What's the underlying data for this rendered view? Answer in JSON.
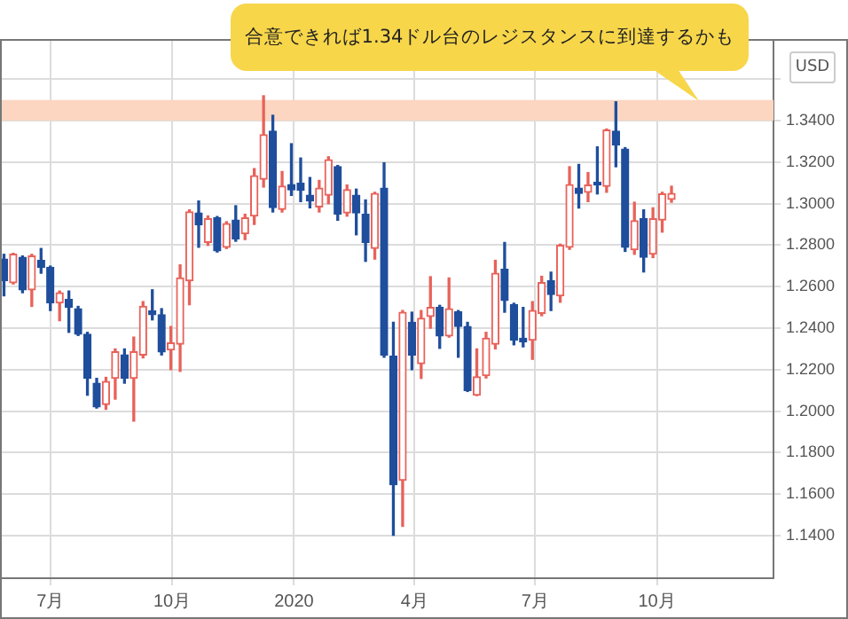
{
  "chart_data": {
    "type": "candlestick",
    "ylabel": "USD",
    "annotations": [
      "合意できれば1.34ドル台のレジスタンスに到達するかも"
    ],
    "x": [
      "2019-05-27",
      "2019-06-03",
      "2019-06-10",
      "2019-06-17",
      "2019-06-24",
      "2019-07-01",
      "2019-07-08",
      "2019-07-15",
      "2019-07-22",
      "2019-07-29",
      "2019-08-05",
      "2019-08-12",
      "2019-08-19",
      "2019-08-26",
      "2019-09-02",
      "2019-09-09",
      "2019-09-16",
      "2019-09-23",
      "2019-09-30",
      "2019-10-07",
      "2019-10-14",
      "2019-10-21",
      "2019-10-28",
      "2019-11-04",
      "2019-11-11",
      "2019-11-18",
      "2019-11-25",
      "2019-12-02",
      "2019-12-09",
      "2019-12-16",
      "2019-12-23",
      "2019-12-30",
      "2020-01-06",
      "2020-01-13",
      "2020-01-20",
      "2020-01-27",
      "2020-02-03",
      "2020-02-10",
      "2020-02-17",
      "2020-02-24",
      "2020-03-02",
      "2020-03-09",
      "2020-03-16",
      "2020-03-23",
      "2020-03-30",
      "2020-04-06",
      "2020-04-13",
      "2020-04-20",
      "2020-04-27",
      "2020-05-04",
      "2020-05-11",
      "2020-05-18",
      "2020-05-25",
      "2020-06-01",
      "2020-06-08",
      "2020-06-15",
      "2020-06-22",
      "2020-06-29",
      "2020-07-06",
      "2020-07-13",
      "2020-07-20",
      "2020-07-27",
      "2020-08-03",
      "2020-08-10",
      "2020-08-17",
      "2020-08-24",
      "2020-08-31",
      "2020-09-07",
      "2020-09-14",
      "2020-09-21",
      "2020-09-28",
      "2020-10-05",
      "2020-10-12"
    ],
    "ohlc": [
      [
        1.2733,
        1.2756,
        1.2556,
        1.2628
      ],
      [
        1.2619,
        1.2761,
        1.2613,
        1.2756
      ],
      [
        1.2742,
        1.2748,
        1.2571,
        1.2585
      ],
      [
        1.2585,
        1.2756,
        1.2505,
        1.2748
      ],
      [
        1.2727,
        1.2784,
        1.2665,
        1.2693
      ],
      [
        1.2693,
        1.2699,
        1.2485,
        1.2522
      ],
      [
        1.2522,
        1.2579,
        1.2436,
        1.2571
      ],
      [
        1.2539,
        1.2579,
        1.238,
        1.25
      ],
      [
        1.2494,
        1.2505,
        1.2365,
        1.2371
      ],
      [
        1.2371,
        1.238,
        1.2077,
        1.2158
      ],
      [
        1.2135,
        1.2158,
        1.2015,
        1.2021
      ],
      [
        1.2032,
        1.2163,
        1.2009,
        1.2143
      ],
      [
        1.2158,
        1.23,
        1.2058,
        1.2286
      ],
      [
        1.2271,
        1.23,
        1.2135,
        1.2158
      ],
      [
        1.2158,
        1.2357,
        1.1952,
        1.2286
      ],
      [
        1.2271,
        1.2528,
        1.2257,
        1.2505
      ],
      [
        1.2483,
        1.2585,
        1.244,
        1.2465
      ],
      [
        1.2465,
        1.2494,
        1.2271,
        1.2286
      ],
      [
        1.2295,
        1.2408,
        1.22,
        1.2329
      ],
      [
        1.2323,
        1.2705,
        1.2192,
        1.2642
      ],
      [
        1.2628,
        1.297,
        1.2513,
        1.2961
      ],
      [
        1.2955,
        1.3013,
        1.279,
        1.2898
      ],
      [
        1.2813,
        1.2941,
        1.2799,
        1.2927
      ],
      [
        1.2932,
        1.2938,
        1.2767,
        1.2773
      ],
      [
        1.279,
        1.2913,
        1.2784,
        1.2904
      ],
      [
        1.2921,
        1.299,
        1.2819,
        1.283
      ],
      [
        1.2855,
        1.2949,
        1.2827,
        1.2932
      ],
      [
        1.294,
        1.3169,
        1.29,
        1.3135
      ],
      [
        1.3118,
        1.352,
        1.308,
        1.3332
      ],
      [
        1.3349,
        1.3426,
        1.296,
        1.2981
      ],
      [
        1.2973,
        1.3155,
        1.296,
        1.3084
      ],
      [
        1.3092,
        1.3289,
        1.304,
        1.3067
      ],
      [
        1.3098,
        1.322,
        1.301,
        1.3064
      ],
      [
        1.3041,
        1.3126,
        1.298,
        1.3013
      ],
      [
        1.2984,
        1.3112,
        1.296,
        1.3075
      ],
      [
        1.3041,
        1.3226,
        1.3,
        1.3212
      ],
      [
        1.3178,
        1.3184,
        1.292,
        1.295
      ],
      [
        1.2955,
        1.309,
        1.294,
        1.3067
      ],
      [
        1.3041,
        1.307,
        1.285,
        1.2955
      ],
      [
        1.2949,
        1.3018,
        1.2722,
        1.2813
      ],
      [
        1.2784,
        1.3055,
        1.2733,
        1.3049
      ],
      [
        1.3075,
        1.3197,
        1.226,
        1.2271
      ],
      [
        1.2265,
        1.2428,
        1.1402,
        1.1645
      ],
      [
        1.1667,
        1.2485,
        1.1445,
        1.2477
      ],
      [
        1.2428,
        1.2477,
        1.22,
        1.2271
      ],
      [
        1.2229,
        1.2485,
        1.2158,
        1.2448
      ],
      [
        1.2457,
        1.2648,
        1.24,
        1.25
      ],
      [
        1.25,
        1.251,
        1.2303,
        1.2363
      ],
      [
        1.2363,
        1.2642,
        1.2357,
        1.2494
      ],
      [
        1.2479,
        1.2485,
        1.226,
        1.2408
      ],
      [
        1.2408,
        1.2428,
        1.2095,
        1.21
      ],
      [
        1.2077,
        1.23,
        1.2075,
        1.2166
      ],
      [
        1.2171,
        1.238,
        1.216,
        1.2351
      ],
      [
        1.2323,
        1.2727,
        1.23,
        1.2665
      ],
      [
        1.2684,
        1.2813,
        1.2477,
        1.2533
      ],
      [
        1.2514,
        1.252,
        1.232,
        1.2342
      ],
      [
        1.2351,
        1.25,
        1.231,
        1.2334
      ],
      [
        1.2342,
        1.2528,
        1.225,
        1.2485
      ],
      [
        1.2471,
        1.265,
        1.246,
        1.262
      ],
      [
        1.2628,
        1.267,
        1.2485,
        1.2562
      ],
      [
        1.2556,
        1.2805,
        1.2525,
        1.2799
      ],
      [
        1.279,
        1.3178,
        1.278,
        1.3092
      ],
      [
        1.3075,
        1.3189,
        1.2979,
        1.3049
      ],
      [
        1.3055,
        1.315,
        1.301,
        1.309
      ],
      [
        1.3104,
        1.3274,
        1.3047,
        1.309
      ],
      [
        1.3084,
        1.336,
        1.3055,
        1.3355
      ],
      [
        1.3349,
        1.3491,
        1.3178,
        1.3283
      ],
      [
        1.3263,
        1.327,
        1.277,
        1.279
      ],
      [
        1.2778,
        1.3007,
        1.2756,
        1.2918
      ],
      [
        1.2927,
        1.297,
        1.2671,
        1.2742
      ],
      [
        1.2757,
        1.298,
        1.274,
        1.2927
      ],
      [
        1.2921,
        1.3055,
        1.2863,
        1.3047
      ],
      [
        1.3021,
        1.3084,
        1.3007,
        1.3049
      ]
    ],
    "colors": [
      "#1f4e9c",
      "#e8625a",
      "#1f4e9c",
      "#e8625a",
      "#1f4e9c",
      "#1f4e9c",
      "#e8625a",
      "#1f4e9c",
      "#1f4e9c",
      "#1f4e9c",
      "#1f4e9c",
      "#e8625a",
      "#e8625a",
      "#1f4e9c",
      "#e8625a",
      "#e8625a",
      "#1f4e9c",
      "#1f4e9c",
      "#e8625a",
      "#e8625a",
      "#e8625a",
      "#1f4e9c",
      "#e8625a",
      "#1f4e9c",
      "#e8625a",
      "#1f4e9c",
      "#e8625a",
      "#e8625a",
      "#e8625a",
      "#1f4e9c",
      "#e8625a",
      "#1f4e9c",
      "#1f4e9c",
      "#1f4e9c",
      "#e8625a",
      "#e8625a",
      "#1f4e9c",
      "#e8625a",
      "#1f4e9c",
      "#1f4e9c",
      "#e8625a",
      "#1f4e9c",
      "#1f4e9c",
      "#e8625a",
      "#1f4e9c",
      "#e8625a",
      "#e8625a",
      "#1f4e9c",
      "#e8625a",
      "#1f4e9c",
      "#1f4e9c",
      "#e8625a",
      "#e8625a",
      "#e8625a",
      "#1f4e9c",
      "#1f4e9c",
      "#1f4e9c",
      "#e8625a",
      "#e8625a",
      "#1f4e9c",
      "#e8625a",
      "#e8625a",
      "#1f4e9c",
      "#e8625a",
      "#1f4e9c",
      "#e8625a",
      "#1f4e9c",
      "#1f4e9c",
      "#e8625a",
      "#1f4e9c",
      "#e8625a",
      "#e8625a",
      "#e8625a"
    ],
    "xlim": [
      "2019-05-24",
      "2020-12-28"
    ],
    "xticks": [
      {
        "value": "2019-07-01",
        "label": "7月"
      },
      {
        "value": "2019-10-01",
        "label": "10月"
      },
      {
        "value": "2020-01-01",
        "label": "2020"
      },
      {
        "value": "2020-04-01",
        "label": "4月"
      },
      {
        "value": "2020-07-01",
        "label": "7月"
      },
      {
        "value": "2020-10-01",
        "label": "10月"
      }
    ],
    "ylim": [
      1.1195,
      1.3785
    ],
    "yticks": [
      {
        "value": 1.14,
        "label": "1.1400"
      },
      {
        "value": 1.16,
        "label": "1.1600"
      },
      {
        "value": 1.18,
        "label": "1.1800"
      },
      {
        "value": 1.2,
        "label": "1.2000"
      },
      {
        "value": 1.22,
        "label": "1.2200"
      },
      {
        "value": 1.24,
        "label": "1.2400"
      },
      {
        "value": 1.26,
        "label": "1.2600"
      },
      {
        "value": 1.28,
        "label": "1.2800"
      },
      {
        "value": 1.3,
        "label": "1.3000"
      },
      {
        "value": 1.32,
        "label": "1.3200"
      },
      {
        "value": 1.34,
        "label": "1.3400"
      },
      {
        "value": 1.36,
        "label": null
      }
    ],
    "bands": [
      {
        "axis": "y",
        "from": 1.34,
        "to": 1.35,
        "color": "#fcd6c0"
      }
    ],
    "grid": true
  }
}
